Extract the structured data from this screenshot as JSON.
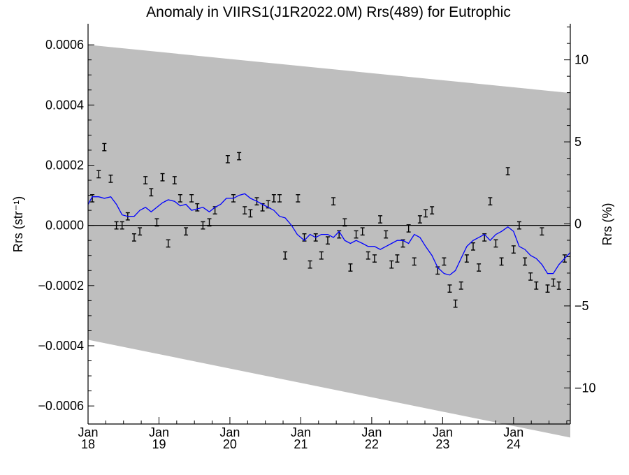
{
  "chart_data": {
    "type": "line",
    "title": "Anomaly in VIIRS1(J1R2022.0M) Rrs(489) for Eutrophic",
    "ylabel_left": "Rrs (str⁻¹)",
    "ylabel_right": "Rrs (%)",
    "xlim": [
      2018.0,
      2024.8
    ],
    "ylim": [
      -0.00066,
      0.00067
    ],
    "ylim_right": [
      -12.2,
      12.2
    ],
    "y_ticks": [
      {
        "value": 0.0006,
        "label": "0.0006"
      },
      {
        "value": 0.0004,
        "label": "0.0004"
      },
      {
        "value": 0.0002,
        "label": "0.0002"
      },
      {
        "value": 0.0,
        "label": "0.0000"
      },
      {
        "value": -0.0002,
        "label": "−0.0002"
      },
      {
        "value": -0.0004,
        "label": "−0.0004"
      },
      {
        "value": -0.0006,
        "label": "−0.0006"
      }
    ],
    "y_right_ticks": [
      {
        "value": 10,
        "label": "10"
      },
      {
        "value": 5,
        "label": "5"
      },
      {
        "value": 0,
        "label": "0"
      },
      {
        "value": -5,
        "label": "−5"
      },
      {
        "value": -10,
        "label": "−10"
      }
    ],
    "x_ticks": [
      {
        "value": 2018.0,
        "month": "Jan",
        "year": "18"
      },
      {
        "value": 2019.0,
        "month": "Jan",
        "year": "19"
      },
      {
        "value": 2020.0,
        "month": "Jan",
        "year": "20"
      },
      {
        "value": 2021.0,
        "month": "Jan",
        "year": "21"
      },
      {
        "value": 2022.0,
        "month": "Jan",
        "year": "22"
      },
      {
        "value": 2023.0,
        "month": "Jan",
        "year": "23"
      },
      {
        "value": 2024.0,
        "month": "Jan",
        "year": "24"
      }
    ],
    "envelope": {
      "x": [
        2018.0,
        2024.8
      ],
      "upper": [
        0.0006,
        0.00044
      ],
      "lower": [
        -0.00038,
        -0.000705
      ],
      "color": "#bebebe"
    },
    "zero_line": true,
    "points": {
      "x": [
        2018.06,
        2018.15,
        2018.23,
        2018.32,
        2018.4,
        2018.48,
        2018.56,
        2018.65,
        2018.73,
        2018.81,
        2018.89,
        2018.97,
        2019.05,
        2019.13,
        2019.22,
        2019.3,
        2019.38,
        2019.46,
        2019.54,
        2019.62,
        2019.71,
        2019.79,
        2019.97,
        2020.05,
        2020.13,
        2020.21,
        2020.29,
        2020.38,
        2020.46,
        2020.54,
        2020.62,
        2020.7,
        2020.78,
        2020.96,
        2021.05,
        2021.13,
        2021.21,
        2021.29,
        2021.38,
        2021.46,
        2021.54,
        2021.62,
        2021.7,
        2021.78,
        2021.87,
        2021.95,
        2022.04,
        2022.12,
        2022.2,
        2022.28,
        2022.36,
        2022.44,
        2022.52,
        2022.6,
        2022.68,
        2022.76,
        2022.85,
        2022.93,
        2023.02,
        2023.1,
        2023.18,
        2023.26,
        2023.34,
        2023.43,
        2023.51,
        2023.59,
        2023.67,
        2023.75,
        2023.83,
        2023.92,
        2024.0,
        2024.08,
        2024.16,
        2024.24,
        2024.32,
        2024.4,
        2024.48,
        2024.56,
        2024.64,
        2024.72
      ],
      "y": [
        9e-05,
        0.00017,
        0.00026,
        0.000155,
        0.0,
        0.0,
        3e-05,
        -4e-05,
        -2e-05,
        0.00015,
        0.00011,
        1e-05,
        0.00016,
        -6e-05,
        0.00015,
        9e-05,
        -2e-05,
        9e-05,
        6e-05,
        0.0,
        1e-05,
        5e-05,
        0.00022,
        9e-05,
        0.00023,
        5e-05,
        4e-05,
        8e-05,
        6e-05,
        7e-05,
        9e-05,
        9e-05,
        -0.0001,
        9e-05,
        -4e-05,
        -0.00013,
        -4e-05,
        -0.0001,
        -5e-05,
        8e-05,
        -3e-05,
        1e-05,
        -0.00014,
        -3e-05,
        -2e-05,
        -0.0001,
        -0.00011,
        2e-05,
        -3e-05,
        -0.00013,
        -0.00011,
        -6e-05,
        -1e-05,
        -0.00012,
        2e-05,
        4e-05,
        5e-05,
        -0.00015,
        -0.00012,
        -0.00021,
        -0.00026,
        -0.0002,
        -0.00011,
        -7e-05,
        -0.00014,
        -4e-05,
        8e-05,
        -6e-05,
        -0.00012,
        0.00018,
        -8e-05,
        0.0,
        -0.00012,
        -0.00017,
        -0.0002,
        -2e-05,
        -0.00021,
        -0.00019,
        -0.0002,
        -0.00011
      ],
      "err": 1.2e-05,
      "color": "#000000"
    },
    "series": [
      {
        "color": "#0000ff",
        "x": [
          2018.0,
          2018.06,
          2018.15,
          2018.23,
          2018.32,
          2018.4,
          2018.48,
          2018.56,
          2018.65,
          2018.73,
          2018.81,
          2018.89,
          2018.97,
          2019.05,
          2019.13,
          2019.22,
          2019.3,
          2019.38,
          2019.46,
          2019.54,
          2019.62,
          2019.71,
          2019.79,
          2019.87,
          2019.95,
          2020.05,
          2020.13,
          2020.21,
          2020.29,
          2020.38,
          2020.46,
          2020.54,
          2020.62,
          2020.7,
          2020.78,
          2020.87,
          2020.95,
          2021.05,
          2021.13,
          2021.21,
          2021.29,
          2021.38,
          2021.46,
          2021.54,
          2021.62,
          2021.7,
          2021.78,
          2021.87,
          2021.95,
          2022.04,
          2022.12,
          2022.2,
          2022.28,
          2022.36,
          2022.44,
          2022.52,
          2022.6,
          2022.68,
          2022.76,
          2022.85,
          2022.93,
          2023.02,
          2023.1,
          2023.18,
          2023.26,
          2023.34,
          2023.43,
          2023.51,
          2023.59,
          2023.67,
          2023.75,
          2023.83,
          2023.92,
          2024.0,
          2024.08,
          2024.16,
          2024.24,
          2024.32,
          2024.4,
          2024.48,
          2024.56,
          2024.64,
          2024.72,
          2024.8
        ],
        "y": [
          7e-05,
          9.5e-05,
          9.5e-05,
          9e-05,
          9.5e-05,
          7e-05,
          3.5e-05,
          3e-05,
          3e-05,
          5e-05,
          6e-05,
          4.5e-05,
          6e-05,
          7.5e-05,
          8.5e-05,
          8e-05,
          6.5e-05,
          7e-05,
          5e-05,
          5.5e-05,
          6e-05,
          4.5e-05,
          6e-05,
          7e-05,
          9e-05,
          9e-05,
          0.0001,
          0.000105,
          9e-05,
          8e-05,
          7e-05,
          6e-05,
          5e-05,
          3e-05,
          2.5e-05,
          0.0,
          -3e-05,
          -5e-05,
          -3e-05,
          -4e-05,
          -3e-05,
          -3e-05,
          -4e-05,
          -2e-05,
          -5e-05,
          -6e-05,
          -5e-05,
          -6e-05,
          -7e-05,
          -7e-05,
          -8e-05,
          -7e-05,
          -6e-05,
          -5e-05,
          -5e-05,
          -6e-05,
          -3e-05,
          -4e-05,
          -7e-05,
          -0.0001,
          -0.00014,
          -0.00016,
          -0.000165,
          -0.00015,
          -0.00011,
          -7e-05,
          -5e-05,
          -4e-05,
          -3e-05,
          -5e-05,
          -3e-05,
          -2e-05,
          -5e-06,
          -2e-05,
          -7e-05,
          -8e-05,
          -0.0001,
          -0.00011,
          -0.00013,
          -0.00016,
          -0.00016,
          -0.00013,
          -0.00011,
          -9e-05
        ]
      }
    ]
  }
}
